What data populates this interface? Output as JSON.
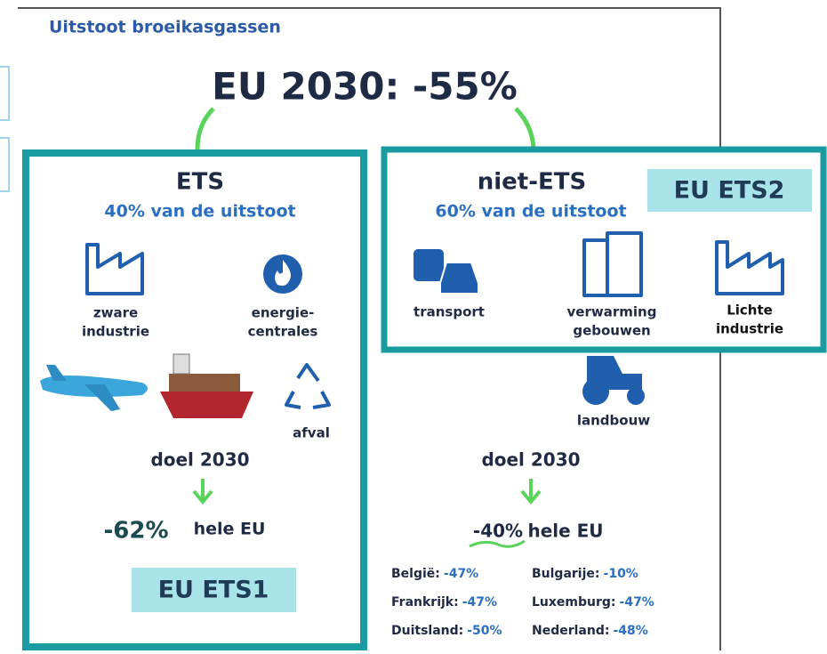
{
  "header": {
    "title": "Uitstoot broeikasgassen",
    "headline": "EU 2030: -55%"
  },
  "ets": {
    "title": "ETS",
    "share": "40% van de uitstoot",
    "sectors": [
      "zware",
      "industrie",
      "energie-",
      "centrales",
      "afval"
    ],
    "goal_label": "doel 2030",
    "goal_value": "-62%",
    "goal_scope": "hele EU",
    "tag": "EU ETS1"
  },
  "non_ets": {
    "title": "niet-ETS",
    "share": "60% van de uitstoot",
    "sectors": [
      "transport",
      "verwarming",
      "gebouwen",
      "Lichte",
      "industrie",
      "landbouw"
    ],
    "goal_label": "doel 2030",
    "goal_value": "-40%",
    "goal_scope": "hele EU",
    "tag": "EU ETS2",
    "countries": [
      [
        "België:",
        "-47%"
      ],
      [
        "Bulgarije:",
        "-10%"
      ],
      [
        "Frankrijk:",
        "-47%"
      ],
      [
        "Luxemburg:",
        "-47%"
      ],
      [
        "Duitsland:",
        "-50%"
      ],
      [
        "Nederland:",
        "-48%"
      ]
    ]
  }
}
